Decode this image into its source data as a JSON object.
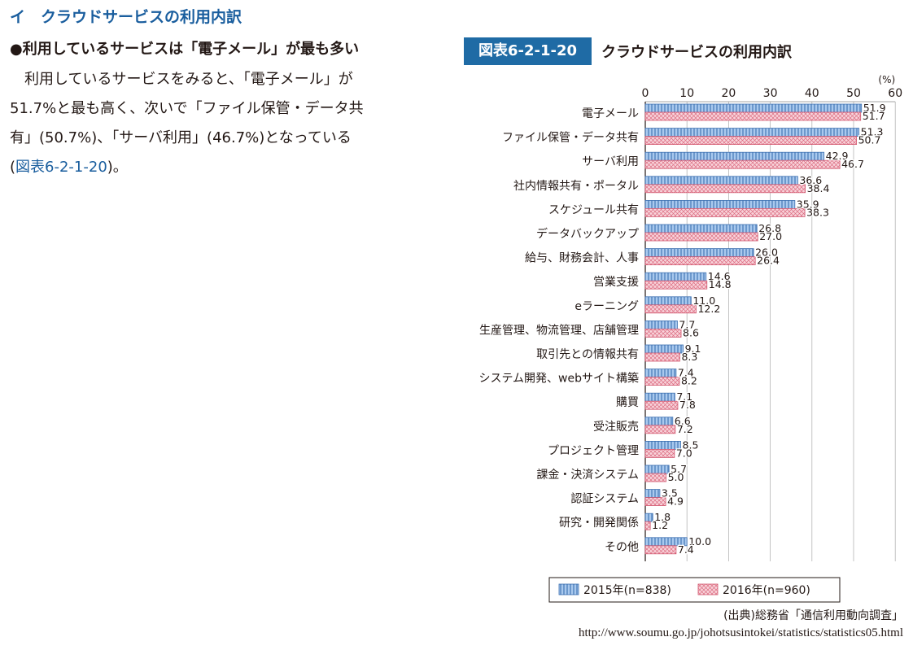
{
  "section_heading": "イ　クラウドサービスの利用内訳",
  "sub_heading": "●利用しているサービスは「電子メール」が最も多い",
  "body_lines": [
    "　利用しているサービスをみると、「電子メール」が",
    "51.7%と最も高く、次いで「ファイル保管・データ共",
    "有」(50.7%)、「サーバ利用」(46.7%)となっている"
  ],
  "body_ref_open": "(",
  "body_ref": "図表6-2-1-20",
  "body_ref_close": ")。",
  "figure_label": "図表6-2-1-20",
  "figure_title": "クラウドサービスの利用内訳",
  "source_line1": "(出典)総務省「通信利用動向調査」",
  "source_line2": "http://www.soumu.go.jp/johotsusintokei/statistics/statistics05.html",
  "colors": {
    "series_2015": "#a9c9ee",
    "series_2015_stroke": "#3b6fb0",
    "series_2016": "#f6c3cd",
    "series_2016_stroke": "#d2576f",
    "heading": "#1a5e9e",
    "figure_label_bg": "#1f6ba5"
  },
  "chart_data": {
    "type": "bar",
    "orientation": "horizontal",
    "title": "クラウドサービスの利用内訳",
    "unit": "(%)",
    "xlim": [
      0,
      60
    ],
    "ticks": [
      0,
      10,
      20,
      30,
      40,
      50,
      60
    ],
    "grid": true,
    "legend_position": "bottom",
    "categories": [
      "電子メール",
      "ファイル保管・データ共有",
      "サーバ利用",
      "社内情報共有・ポータル",
      "スケジュール共有",
      "データバックアップ",
      "給与、財務会計、人事",
      "営業支援",
      "eラーニング",
      "生産管理、物流管理、店舗管理",
      "取引先との情報共有",
      "システム開発、webサイト構築",
      "購買",
      "受注販売",
      "プロジェクト管理",
      "課金・決済システム",
      "認証システム",
      "研究・開発関係",
      "その他"
    ],
    "series": [
      {
        "name": "2015年(n=838)",
        "values": [
          51.9,
          51.3,
          42.9,
          36.6,
          35.9,
          26.8,
          26.0,
          14.6,
          11.0,
          7.7,
          9.1,
          7.4,
          7.1,
          6.6,
          8.5,
          5.7,
          3.5,
          1.8,
          10.0
        ]
      },
      {
        "name": "2016年(n=960)",
        "values": [
          51.7,
          50.7,
          46.7,
          38.4,
          38.3,
          27.0,
          26.4,
          14.8,
          12.2,
          8.6,
          8.3,
          8.2,
          7.8,
          7.2,
          7.0,
          5.0,
          4.9,
          1.2,
          7.4
        ]
      }
    ]
  }
}
